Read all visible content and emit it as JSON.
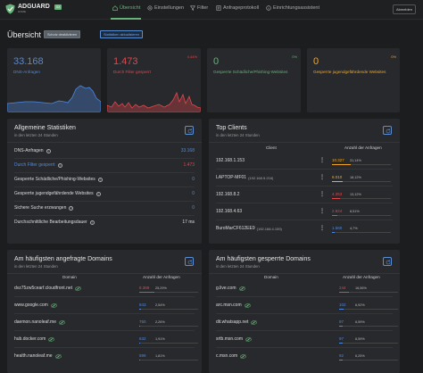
{
  "header": {
    "brand": "ADGUARD",
    "brand_sub": "HOME",
    "badge": "XX",
    "logout": "Abmelden",
    "nav": [
      {
        "label": "Übersicht"
      },
      {
        "label": "Einstellungen"
      },
      {
        "label": "Filter"
      },
      {
        "label": "Anfrageprotokoll"
      },
      {
        "label": "Einrichtungsassistent"
      }
    ]
  },
  "page": {
    "title": "Übersicht",
    "btn_protection": "Schutz deaktivieren",
    "btn_refresh": "Statistiken aktualisieren"
  },
  "stats": [
    {
      "value": "33.168",
      "label": "DNS-Anfragen",
      "pct": "",
      "color": "#4f8ae0"
    },
    {
      "value": "1.473",
      "label": "Durch Filter gesperrt",
      "pct": "4,44%",
      "color": "#e0474c"
    },
    {
      "value": "0",
      "label": "Gesperrte Schädliche/Phishing-Websites",
      "pct": "0%",
      "color": "#67b279"
    },
    {
      "value": "0",
      "label": "Gesperrte jugendgefährdende Websites",
      "pct": "0%",
      "color": "#f5a623"
    }
  ],
  "general": {
    "title": "Allgemeine Statistiken",
    "sub": "in den letzten 24 Stunden",
    "rows": [
      {
        "label": "DNS-Anfragen",
        "value": "33.168",
        "color": "#4f8ae0",
        "lcolor": "#dcdcdc"
      },
      {
        "label": "Durch Filter gesperrt",
        "value": "1.473",
        "color": "#e0474c",
        "lcolor": "#4f8ae0"
      },
      {
        "label": "Gesperrte Schädliche/Phishing-Websites",
        "value": "0",
        "color": "#4f8ae0",
        "lcolor": "#dcdcdc"
      },
      {
        "label": "Gesperrte jugendgefährdende Websites",
        "value": "0",
        "color": "#4f8ae0",
        "lcolor": "#dcdcdc"
      },
      {
        "label": "Sichere Suche erzwungen",
        "value": "0",
        "color": "#4f8ae0",
        "lcolor": "#dcdcdc"
      },
      {
        "label": "Durchschnittliche Bearbeitungsdauer",
        "value": "17 ms",
        "color": "#dcdcdc",
        "lcolor": "#dcdcdc"
      }
    ]
  },
  "clients": {
    "title": "Top Clients",
    "sub": "in den letzten 24 Stunden",
    "col1": "Client",
    "col2": "Anzahl der Anfragen",
    "rows": [
      {
        "name": "192.168.1.153",
        "extra": "",
        "count": "10.327",
        "pct": "31,14%",
        "fill": 0.3114,
        "color": "#f5a623"
      },
      {
        "name": "LAPTOP-MF01",
        "extra": "(192.168.5.216)",
        "count": "6.010",
        "pct": "18,12%",
        "fill": 0.1812,
        "color": "#f5a623"
      },
      {
        "name": "192.168.8.2",
        "extra": "",
        "count": "4.353",
        "pct": "13,12%",
        "fill": 0.1312,
        "color": "#e0474c"
      },
      {
        "name": "192.168.4.63",
        "extra": "",
        "count": "2.824",
        "pct": "8,51%",
        "fill": 0.0851,
        "color": "#e0474c"
      },
      {
        "name": "BuroMarCF612EE9",
        "extra": "(192.168.4.159)",
        "count": "1.560",
        "pct": "4,7%",
        "fill": 0.047,
        "color": "#4f8ae0"
      }
    ]
  },
  "queried": {
    "title": "Am häufigsten angefragte Domains",
    "sub": "in den letzten 24 Stunden",
    "col1": "Domain",
    "col2": "Anzahl der Anfragen",
    "rows": [
      {
        "name": "dvz75zw5cearf.cloudfront.net",
        "count": "8.389",
        "pct": "25,29%",
        "fill": 0.2529,
        "color": "#e0474c"
      },
      {
        "name": "www.google.com",
        "count": "843",
        "pct": "2,54%",
        "fill": 0.0254,
        "color": "#4f8ae0"
      },
      {
        "name": "daemon.nanoleaf.me",
        "count": "750",
        "pct": "2,26%",
        "fill": 0.0226,
        "color": "#4f8ae0"
      },
      {
        "name": "hub.docker.com",
        "count": "632",
        "pct": "1,91%",
        "fill": 0.0191,
        "color": "#4f8ae0"
      },
      {
        "name": "health.nanoleaf.me",
        "count": "599",
        "pct": "1,81%",
        "fill": 0.0181,
        "color": "#4f8ae0"
      }
    ]
  },
  "blocked": {
    "title": "Am häufigsten gesperrte Domains",
    "sub": "in den letzten 24 Stunden",
    "col1": "Domain",
    "col2": "Anzahl der Anfragen",
    "rows": [
      {
        "name": "g.live.com",
        "count": "244",
        "pct": "16,56%",
        "fill": 0.1656,
        "color": "#e0474c"
      },
      {
        "name": "arc.msn.com",
        "count": "102",
        "pct": "6,92%",
        "fill": 0.0692,
        "color": "#4f8ae0"
      },
      {
        "name": "dit.whatsapp.net",
        "count": "97",
        "pct": "6,59%",
        "fill": 0.0659,
        "color": "#4f8ae0"
      },
      {
        "name": "srtb.msn.com",
        "count": "97",
        "pct": "6,59%",
        "fill": 0.0659,
        "color": "#4f8ae0"
      },
      {
        "name": "c.msn.com",
        "count": "92",
        "pct": "6,25%",
        "fill": 0.0625,
        "color": "#4f8ae0"
      }
    ]
  }
}
